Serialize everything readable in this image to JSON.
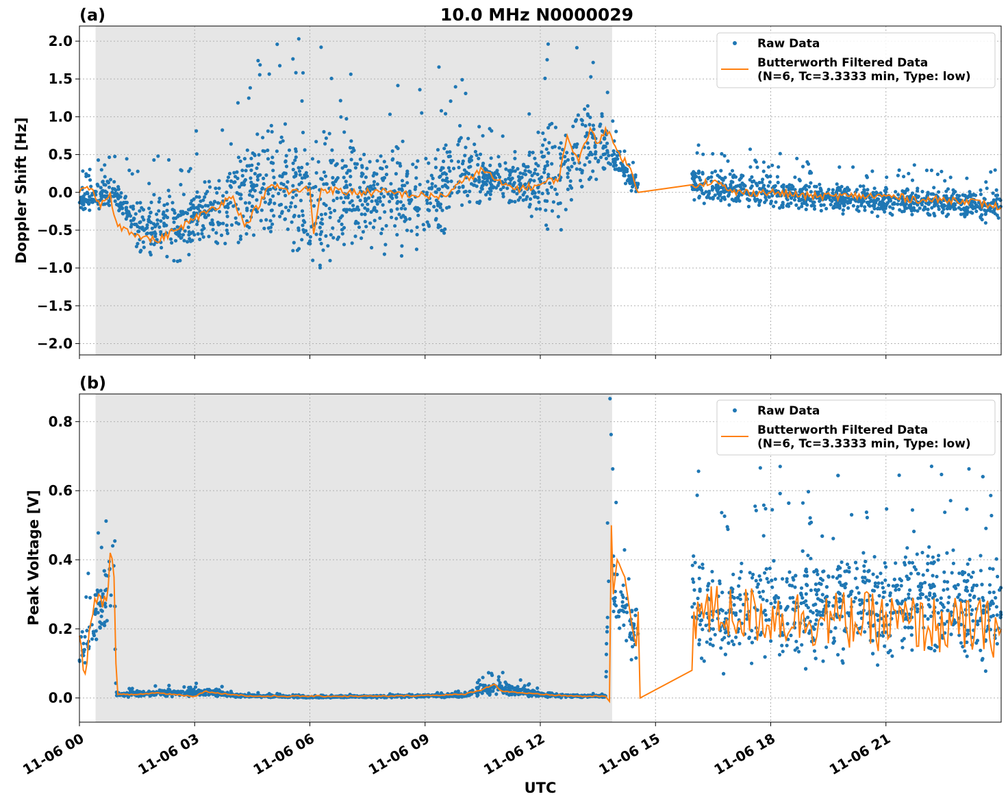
{
  "title": "10.0 MHz N0000029",
  "xlabel": "UTC",
  "colors": {
    "raw": "#1f77b4",
    "filtered": "#ff7f0e",
    "shade": "#e6e6e6",
    "grid": "#b0b0b0"
  },
  "x_ticks": [
    "11-06 00",
    "11-06 03",
    "11-06 06",
    "11-06 09",
    "11-06 12",
    "11-06 15",
    "11-06 18",
    "11-06 21"
  ],
  "legend": {
    "raw_label": "Raw Data",
    "filtered_label_line1": "Butterworth Filtered Data",
    "filtered_label_line2": "(N=6, Tc=3.3333 min, Type: low)"
  },
  "chart_data": [
    {
      "type": "scatter",
      "panel_label": "(a)",
      "ylabel": "Doppler Shift [Hz]",
      "x_unit": "hours UTC on 11-06",
      "xlim": [
        0,
        24
      ],
      "ylim": [
        -2.15,
        2.2
      ],
      "yticks": [
        -2.0,
        -1.5,
        -1.0,
        -0.5,
        0.0,
        0.5,
        1.0,
        1.5,
        2.0
      ],
      "ytick_labels": [
        "−2.0",
        "−1.5",
        "−1.0",
        "−0.5",
        "0.0",
        "0.5",
        "1.0",
        "1.5",
        "2.0"
      ],
      "night_shading": [
        0.42,
        13.87
      ],
      "data_gap": [
        14.55,
        15.95
      ],
      "legend_position": "top-right",
      "grid": true,
      "series": [
        {
          "name": "Raw Data",
          "style": "dots",
          "envelope": {
            "x": [
              0,
              0.9,
              1.5,
              2.5,
              3.0,
              4.0,
              4.3,
              5.5,
              6.0,
              7.0,
              8.0,
              9.0,
              10.0,
              10.5,
              11.5,
              12.3,
              12.7,
              13.0,
              13.5,
              13.9,
              14.3,
              14.55,
              15.95,
              16.5,
              18.0,
              20.0,
              22.0,
              24.0
            ],
            "lower": [
              -0.3,
              -0.3,
              -1.0,
              -1.1,
              -1.0,
              -0.8,
              -1.0,
              -1.0,
              -1.4,
              -1.0,
              -1.0,
              -1.0,
              -0.5,
              -0.2,
              -0.3,
              -0.8,
              -0.5,
              -0.3,
              -0.1,
              0.2,
              0.0,
              -0.1,
              -0.2,
              -0.25,
              -0.3,
              -0.35,
              -0.4,
              -0.45
            ],
            "upper": [
              0.15,
              0.3,
              0.05,
              0.2,
              0.3,
              0.5,
              1.1,
              1.2,
              1.1,
              0.9,
              0.8,
              0.9,
              1.1,
              0.6,
              0.5,
              1.3,
              1.1,
              1.5,
              1.3,
              0.8,
              0.4,
              0.3,
              0.45,
              0.4,
              0.3,
              0.2,
              0.15,
              0.1
            ]
          }
        },
        {
          "name": "Butterworth Filtered Data",
          "style": "line",
          "x": [
            0,
            0.3,
            0.55,
            0.8,
            0.9,
            1.0,
            1.5,
            2.0,
            2.5,
            3.0,
            3.5,
            4.0,
            4.3,
            5.0,
            5.5,
            6.0,
            6.1,
            6.3,
            7.0,
            8.0,
            9.0,
            9.5,
            10.0,
            10.5,
            11.0,
            11.5,
            12.0,
            12.5,
            12.7,
            13.0,
            13.3,
            13.5,
            13.7,
            14.0,
            14.3,
            14.55,
            15.95,
            16.5,
            17.0,
            18.0,
            19.0,
            20.0,
            21.0,
            22.0,
            23.0,
            24.0
          ],
          "y": [
            0.0,
            0.05,
            -0.2,
            0.0,
            -0.3,
            -0.45,
            -0.55,
            -0.65,
            -0.5,
            -0.35,
            -0.2,
            -0.05,
            -0.45,
            0.1,
            0.0,
            0.05,
            -0.55,
            0.05,
            0.0,
            0.0,
            -0.05,
            -0.05,
            0.15,
            0.3,
            0.1,
            0.05,
            0.1,
            0.2,
            0.75,
            0.4,
            0.85,
            0.65,
            0.85,
            0.55,
            0.35,
            0.0,
            0.1,
            0.15,
            0.0,
            0.0,
            -0.05,
            -0.05,
            -0.05,
            -0.1,
            -0.1,
            -0.2
          ]
        }
      ]
    },
    {
      "type": "scatter",
      "panel_label": "(b)",
      "ylabel": "Peak Voltage [V]",
      "x_unit": "hours UTC on 11-06",
      "xlim": [
        0,
        24
      ],
      "ylim": [
        -0.07,
        0.88
      ],
      "yticks": [
        0.0,
        0.2,
        0.4,
        0.6,
        0.8
      ],
      "ytick_labels": [
        "0.0",
        "0.2",
        "0.4",
        "0.6",
        "0.8"
      ],
      "night_shading": [
        0.42,
        13.87
      ],
      "data_gap": [
        14.55,
        15.95
      ],
      "legend_position": "top-right",
      "grid": true,
      "series": [
        {
          "name": "Raw Data",
          "style": "dots",
          "envelope": {
            "x": [
              0,
              0.4,
              0.7,
              0.9,
              0.95,
              1.5,
              2.5,
              3.0,
              3.5,
              4.0,
              6.0,
              8.0,
              10.0,
              10.5,
              11.0,
              11.5,
              12.0,
              13.0,
              13.7,
              13.8,
              13.9,
              14.2,
              14.55,
              15.95,
              16.5,
              18.0,
              20.0,
              22.0,
              24.0
            ],
            "lower": [
              0.05,
              0.1,
              0.15,
              0.2,
              0.0,
              0.0,
              0.0,
              0.0,
              0.0,
              0.0,
              0.0,
              0.0,
              0.0,
              0.0,
              0.0,
              0.0,
              0.0,
              0.0,
              0.0,
              0.15,
              0.15,
              0.1,
              0.05,
              0.05,
              0.05,
              0.05,
              0.05,
              0.05,
              0.05
            ],
            "upper": [
              0.2,
              0.35,
              0.45,
              0.65,
              0.02,
              0.025,
              0.03,
              0.03,
              0.035,
              0.015,
              0.005,
              0.01,
              0.015,
              0.05,
              0.06,
              0.04,
              0.02,
              0.01,
              0.01,
              0.75,
              0.55,
              0.4,
              0.3,
              0.55,
              0.45,
              0.5,
              0.5,
              0.55,
              0.45
            ]
          }
        },
        {
          "name": "Butterworth Filtered Data",
          "style": "line",
          "x": [
            0,
            0.15,
            0.3,
            0.5,
            0.7,
            0.8,
            0.9,
            0.95,
            1.0,
            1.5,
            2.0,
            2.5,
            3.0,
            3.3,
            3.5,
            4.0,
            4.5,
            6.0,
            8.0,
            10.0,
            10.5,
            10.8,
            11.0,
            11.5,
            12.0,
            13.0,
            13.7,
            13.8,
            13.85,
            13.9,
            14.0,
            14.2,
            14.4,
            14.5,
            14.55,
            14.6,
            15.95,
            16.0,
            24.0
          ],
          "y": [
            0.18,
            0.07,
            0.22,
            0.3,
            0.28,
            0.42,
            0.35,
            0.1,
            0.01,
            0.01,
            0.015,
            0.01,
            0.005,
            0.02,
            0.015,
            0.01,
            0.005,
            0.005,
            0.005,
            0.01,
            0.025,
            0.04,
            0.02,
            0.015,
            0.01,
            0.005,
            0.005,
            -0.01,
            0.5,
            0.3,
            0.4,
            0.35,
            0.2,
            0.15,
            0.25,
            0.0,
            0.08,
            0.25,
            0.2
          ]
        }
      ]
    }
  ]
}
